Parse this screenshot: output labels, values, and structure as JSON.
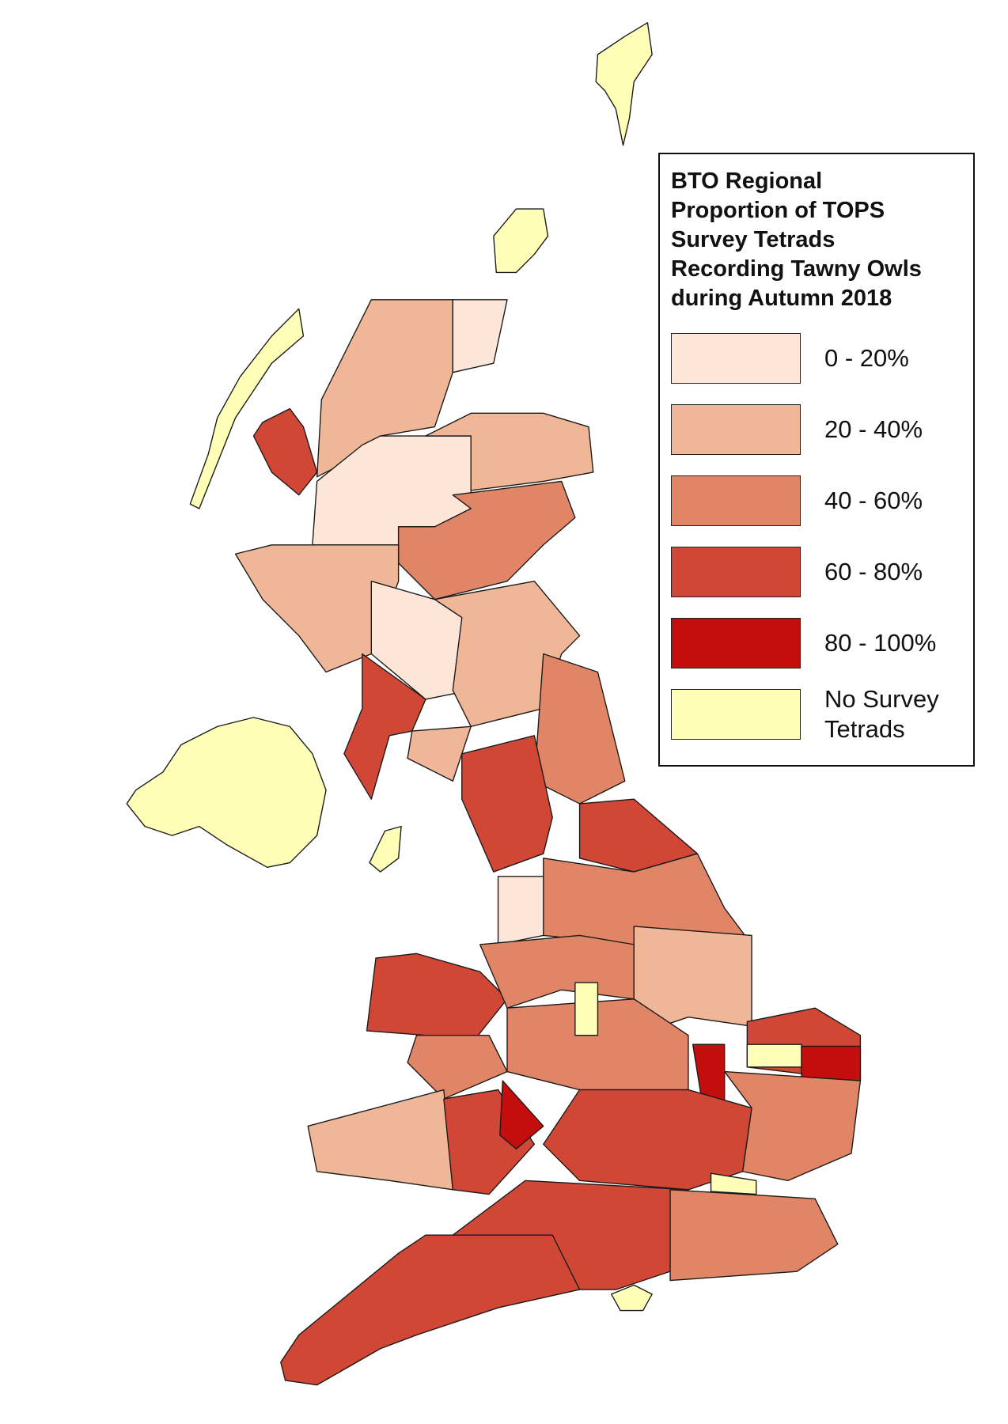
{
  "legend": {
    "title": "BTO Regional Proportion of TOPS Survey Tetrads Recording Tawny Owls during Autumn 2018",
    "items": [
      {
        "label": "0 - 20%",
        "color": "#fde6d8"
      },
      {
        "label": "20 - 40%",
        "color": "#efb797"
      },
      {
        "label": "40 - 60%",
        "color": "#e08667"
      },
      {
        "label": "60 - 80%",
        "color": "#d14736"
      },
      {
        "label": "80 - 100%",
        "color": "#c40e0e"
      },
      {
        "label": "No Survey Tetrads",
        "color": "#ffffb8"
      }
    ]
  }
}
